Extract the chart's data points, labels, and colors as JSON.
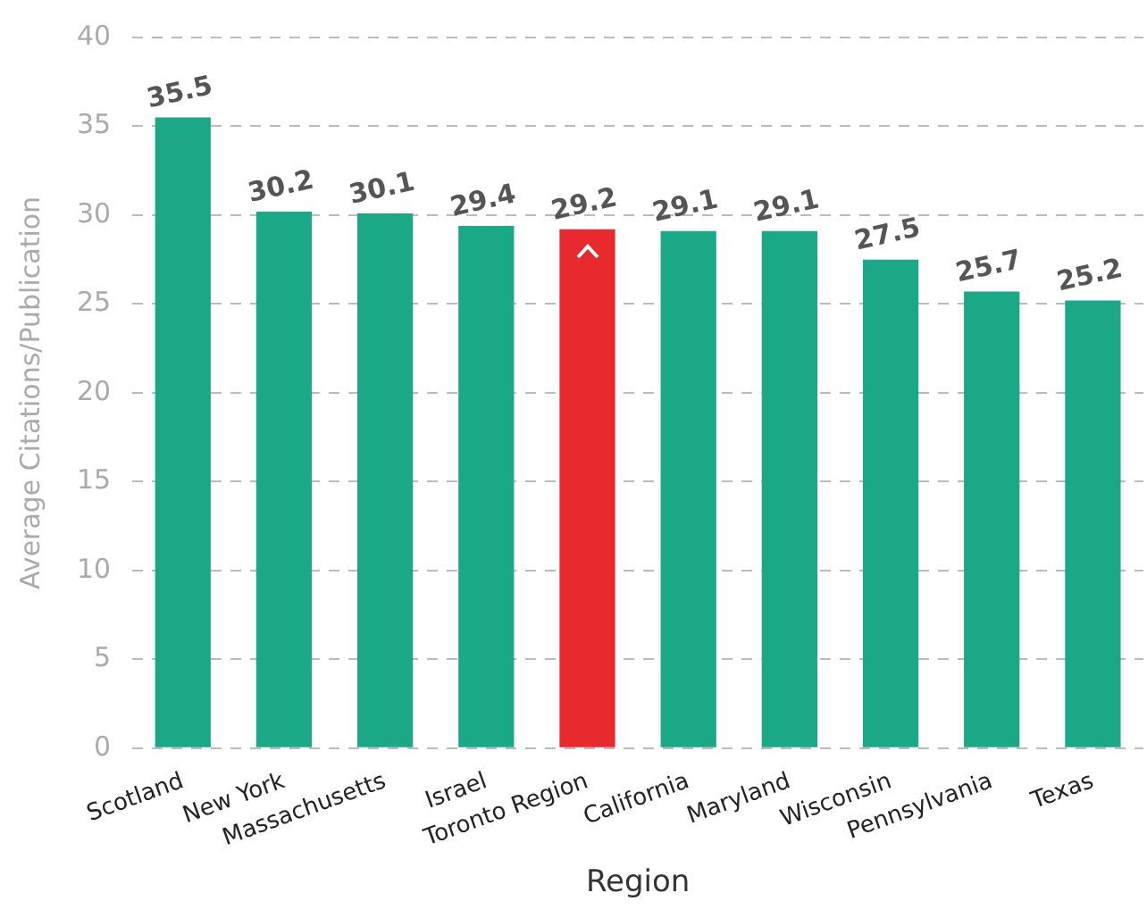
{
  "chart_data": {
    "type": "bar",
    "xlabel": "Region",
    "ylabel": "Average Citations/Publication",
    "categories": [
      "Scotland",
      "New York",
      "Massachusetts",
      "Israel",
      "Toronto Region",
      "California",
      "Maryland",
      "Wisconsin",
      "Pennsylvania",
      "Texas"
    ],
    "values": [
      35.5,
      30.2,
      30.1,
      29.4,
      29.2,
      29.1,
      29.1,
      27.5,
      25.7,
      25.2
    ],
    "colors": [
      "#1aa886",
      "#1aa886",
      "#1aa886",
      "#1aa886",
      "#e8292e",
      "#1aa886",
      "#1aa886",
      "#1aa886",
      "#1aa886",
      "#1aa886"
    ],
    "ylim": [
      0,
      40
    ],
    "yticks": [
      0,
      5,
      10,
      15,
      20,
      25,
      30,
      35,
      40
    ],
    "grid": "y",
    "data_labels": true,
    "legend": false
  }
}
